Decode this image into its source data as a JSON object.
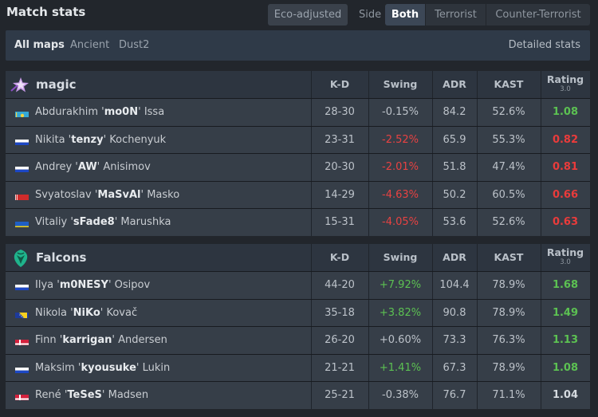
{
  "header": {
    "title": "Match stats",
    "eco_adjusted": "Eco-adjusted",
    "side_label": "Side",
    "side_options": [
      "Both",
      "Terrorist",
      "Counter-Terrorist"
    ]
  },
  "maps": {
    "items": [
      "All maps",
      "Ancient",
      "Dust2"
    ],
    "detailed_stats": "Detailed stats"
  },
  "columns": [
    "K-D",
    "Swing",
    "ADR",
    "KAST",
    "Rating",
    "3.0"
  ],
  "teams": [
    {
      "name": "magic",
      "logo_icon": "magic-star-logo",
      "players": [
        {
          "first": "Abdurakhim '",
          "nick": "mo0N",
          "last": "' Issa",
          "flag": "flag-kazakhstan",
          "kd": "28-30",
          "swing": "-0.15%",
          "swing_type": "neu",
          "adr": "84.2",
          "kast": "52.6%",
          "rating": "1.08",
          "rating_type": "good"
        },
        {
          "first": "Nikita '",
          "nick": "tenzy",
          "last": "' Kochenyuk",
          "flag": "flag-russia",
          "kd": "23-31",
          "swing": "-2.52%",
          "swing_type": "neg",
          "adr": "65.9",
          "kast": "55.3%",
          "rating": "0.82",
          "rating_type": "bad"
        },
        {
          "first": "Andrey '",
          "nick": "AW",
          "last": "' Anisimov",
          "flag": "flag-russia",
          "kd": "20-30",
          "swing": "-2.01%",
          "swing_type": "neg",
          "adr": "51.8",
          "kast": "47.4%",
          "rating": "0.81",
          "rating_type": "bad"
        },
        {
          "first": "Svyatoslav '",
          "nick": "MaSvAl",
          "last": "' Masko",
          "flag": "flag-belarus",
          "kd": "14-29",
          "swing": "-4.63%",
          "swing_type": "neg",
          "adr": "50.2",
          "kast": "60.5%",
          "rating": "0.66",
          "rating_type": "bad"
        },
        {
          "first": "Vitaliy '",
          "nick": "sFade8",
          "last": "' Marushka",
          "flag": "flag-ukraine",
          "kd": "15-31",
          "swing": "-4.05%",
          "swing_type": "neg",
          "adr": "53.6",
          "kast": "52.6%",
          "rating": "0.63",
          "rating_type": "bad"
        }
      ]
    },
    {
      "name": "Falcons",
      "logo_icon": "falcons-logo",
      "players": [
        {
          "first": "Ilya '",
          "nick": "m0NESY",
          "last": "' Osipov",
          "flag": "flag-russia",
          "kd": "44-20",
          "swing": "+7.92%",
          "swing_type": "pos",
          "adr": "104.4",
          "kast": "78.9%",
          "rating": "1.68",
          "rating_type": "good"
        },
        {
          "first": "Nikola '",
          "nick": "NiKo",
          "last": "' Kovač",
          "flag": "flag-bosnia",
          "kd": "35-18",
          "swing": "+3.82%",
          "swing_type": "pos",
          "adr": "90.8",
          "kast": "78.9%",
          "rating": "1.49",
          "rating_type": "good"
        },
        {
          "first": "Finn '",
          "nick": "karrigan",
          "last": "' Andersen",
          "flag": "flag-denmark",
          "kd": "26-20",
          "swing": "+0.60%",
          "swing_type": "neu",
          "adr": "73.3",
          "kast": "76.3%",
          "rating": "1.13",
          "rating_type": "good"
        },
        {
          "first": "Maksim '",
          "nick": "kyousuke",
          "last": "' Lukin",
          "flag": "flag-russia",
          "kd": "21-21",
          "swing": "+1.41%",
          "swing_type": "pos",
          "adr": "67.3",
          "kast": "78.9%",
          "rating": "1.08",
          "rating_type": "good"
        },
        {
          "first": "René '",
          "nick": "TeSeS",
          "last": "' Madsen",
          "flag": "flag-denmark",
          "kd": "25-21",
          "swing": "-0.38%",
          "swing_type": "neu",
          "adr": "76.7",
          "kast": "71.1%",
          "rating": "1.04",
          "rating_type": "neu"
        }
      ]
    }
  ],
  "colors": {
    "positive": "#5cc152",
    "negative": "#e84242",
    "background": "#22262c"
  }
}
